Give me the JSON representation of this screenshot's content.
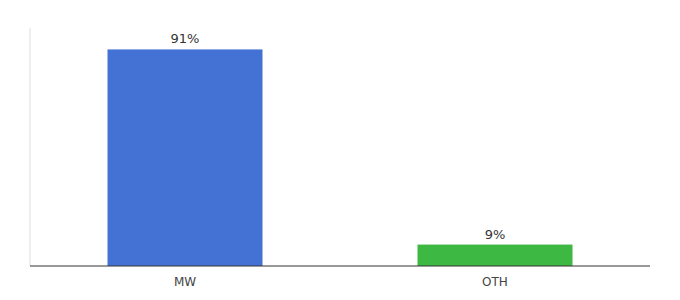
{
  "chart_data": {
    "type": "bar",
    "categories": [
      "MW",
      "OTH"
    ],
    "values": [
      91,
      9
    ],
    "value_labels": [
      "91%",
      "9%"
    ],
    "colors": [
      "#4472d4",
      "#3cb843"
    ],
    "ylim": [
      0,
      100
    ],
    "grid": false,
    "data_labels": true,
    "tick_labels": "x"
  }
}
